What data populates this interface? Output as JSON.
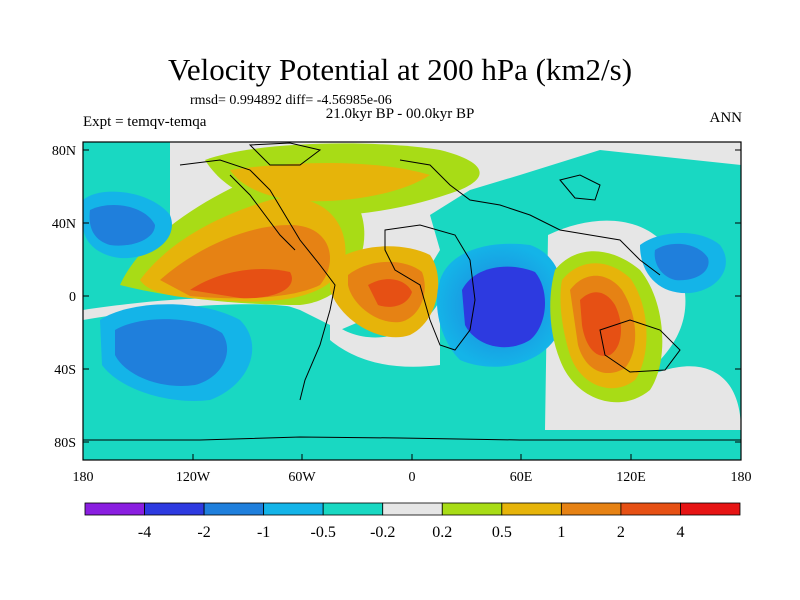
{
  "title": "Velocity Potential at 200 hPa (km2/s)",
  "stats": "rmsd= 0.994892 diff= -4.56985e-06",
  "period": "21.0kyr BP - 00.0kyr BP",
  "experiment": "Expt = temqv-temqa",
  "season": "ANN",
  "lat_labels": [
    "80N",
    "40N",
    "0",
    "40S",
    "80S"
  ],
  "lon_labels": [
    "180",
    "120W",
    "60W",
    "0",
    "60E",
    "120E",
    "180"
  ],
  "colorbar": {
    "colors": [
      "#8a1ee0",
      "#2d3ae0",
      "#1f7fdc",
      "#14b4e8",
      "#19d8c2",
      "#e6e6e6",
      "#a8dc16",
      "#e6b40a",
      "#e68214",
      "#e65014",
      "#e61414"
    ],
    "labels": [
      "-4",
      "-2",
      "-1",
      "-0.5",
      "-0.2",
      "0.2",
      "0.5",
      "1",
      "2",
      "4"
    ]
  }
}
